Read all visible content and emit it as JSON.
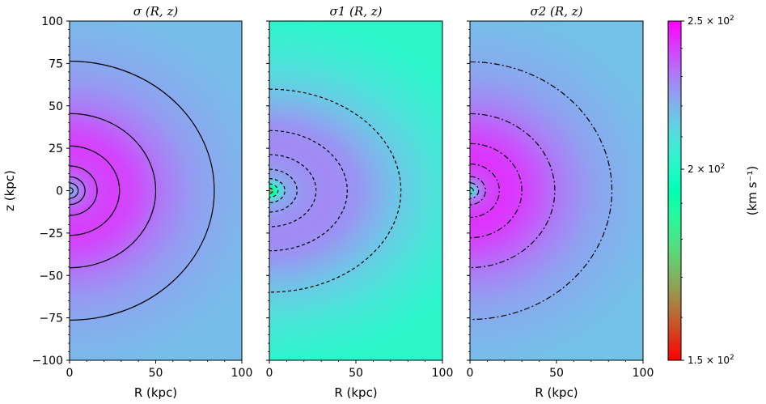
{
  "chart_data": [
    {
      "type": "heatmap",
      "title": "σ (R, z)",
      "xlabel": "R (kpc)",
      "ylabel": "z (kpc)",
      "xlim": [
        0,
        100
      ],
      "ylim": [
        -100,
        100
      ],
      "x_ticks": [
        "0",
        "50",
        "100"
      ],
      "y_ticks": [
        "100",
        "75",
        "50",
        "25",
        "0",
        "−25",
        "−50",
        "−75",
        "−100"
      ],
      "contour_style": "solid",
      "contour_radii_kpc": [
        2,
        5,
        9,
        16,
        29,
        50,
        84
      ],
      "axis_ratio_q": 1.1,
      "dispersion_field_kms": {
        "r": [
          0,
          3,
          8,
          15,
          25,
          35,
          45,
          55,
          70,
          85,
          100,
          120
        ],
        "sigma": [
          218,
          225,
          233,
          238,
          240,
          239,
          235,
          230,
          225,
          222,
          220,
          218
        ]
      }
    },
    {
      "type": "heatmap",
      "title": "σ1 (R, z)",
      "xlabel": "R (kpc)",
      "xlim": [
        0,
        100
      ],
      "ylim": [
        -100,
        100
      ],
      "x_ticks": [
        "0",
        "50",
        "100"
      ],
      "contour_style": "dashed",
      "contour_radii_kpc": [
        2,
        5,
        9,
        16,
        27,
        45,
        76
      ],
      "axis_ratio_q": 1.27,
      "dispersion_field_kms": {
        "r": [
          0,
          1.5,
          3,
          6,
          10,
          20,
          35,
          50,
          65,
          80,
          100,
          130
        ],
        "sigma": [
          168,
          172,
          190,
          212,
          222,
          226,
          228,
          226,
          220,
          214,
          208,
          202
        ]
      }
    },
    {
      "type": "heatmap",
      "title": "σ2 (R, z)",
      "xlabel": "R (kpc)",
      "xlim": [
        0,
        100
      ],
      "ylim": [
        -100,
        100
      ],
      "x_ticks": [
        "0",
        "50",
        "100"
      ],
      "contour_style": "dashdot",
      "contour_radii_kpc": [
        2,
        5,
        9,
        17,
        30,
        49,
        82
      ],
      "axis_ratio_q": 1.08,
      "dispersion_field_kms": {
        "r": [
          0,
          2,
          5,
          10,
          20,
          30,
          40,
          55,
          70,
          85,
          100,
          120
        ],
        "sigma": [
          205,
          212,
          228,
          238,
          242,
          240,
          236,
          229,
          224,
          221,
          219,
          217
        ]
      }
    }
  ],
  "colorbar": {
    "label": "(km s⁻¹)",
    "range_kms": [
      150,
      250
    ],
    "scale": "log",
    "ticks": [
      {
        "value": 250,
        "mant": "2.5",
        "exp": "2"
      },
      {
        "value": 200,
        "mant": "2",
        "exp": "2"
      },
      {
        "value": 150,
        "mant": "1.5",
        "exp": "2"
      }
    ],
    "colormap": "rainbow"
  }
}
